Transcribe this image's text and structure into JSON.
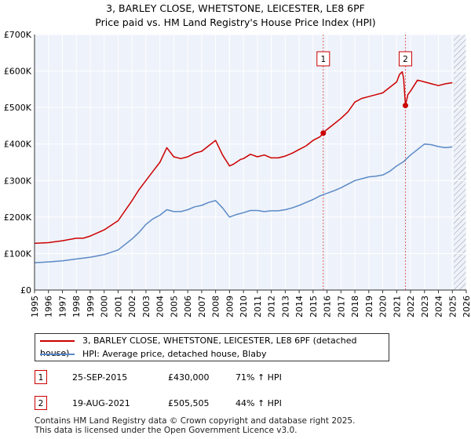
{
  "title_line1": "3, BARLEY CLOSE, WHETSTONE, LEICESTER, LE8 6PF",
  "title_line2": "Price paid vs. HM Land Registry's House Price Index (HPI)",
  "legend": [
    {
      "label": "3, BARLEY CLOSE, WHETSTONE, LEICESTER, LE8 6PF (detached house)",
      "color": "#cc0000"
    },
    {
      "label": "HPI: Average price, detached house, Blaby",
      "color": "#5b8ac6"
    }
  ],
  "transactions": [
    {
      "num": "1",
      "date": "25-SEP-2015",
      "price": "£430,000",
      "hpi": "71% ↑ HPI"
    },
    {
      "num": "2",
      "date": "19-AUG-2021",
      "price": "£505,505",
      "hpi": "44% ↑ HPI"
    }
  ],
  "footer_line1": "Contains HM Land Registry data © Crown copyright and database right 2025.",
  "footer_line2": "This data is licensed under the Open Government Licence v3.0.",
  "chart_data": {
    "type": "line",
    "xlim": [
      1995,
      2026
    ],
    "ylim": [
      0,
      700000
    ],
    "x_ticks": [
      "1995",
      "1996",
      "1997",
      "1998",
      "1999",
      "2000",
      "2001",
      "2002",
      "2003",
      "2004",
      "2005",
      "2006",
      "2007",
      "2008",
      "2009",
      "2010",
      "2011",
      "2012",
      "2013",
      "2014",
      "2015",
      "2016",
      "2017",
      "2018",
      "2019",
      "2020",
      "2021",
      "2022",
      "2023",
      "2024",
      "2025",
      "2026"
    ],
    "y_ticks": [
      {
        "value": 0,
        "label": "£0"
      },
      {
        "value": 100000,
        "label": "£100K"
      },
      {
        "value": 200000,
        "label": "£200K"
      },
      {
        "value": 300000,
        "label": "£300K"
      },
      {
        "value": 400000,
        "label": "£400K"
      },
      {
        "value": 500000,
        "label": "£500K"
      },
      {
        "value": 600000,
        "label": "£600K"
      },
      {
        "value": 700000,
        "label": "£700K"
      }
    ],
    "grid": true,
    "background": "#eef2fa",
    "future_hatch_from": 2025.1,
    "series": [
      {
        "name": "3, BARLEY CLOSE, WHETSTONE, LEICESTER, LE8 6PF (detached house)",
        "color": "#cc0000",
        "x": [
          1995.0,
          1996.0,
          1997.0,
          1998.0,
          1998.5,
          1999.0,
          2000.0,
          2001.0,
          2002.0,
          2002.5,
          2003.0,
          2003.5,
          2004.0,
          2004.5,
          2005.0,
          2005.5,
          2006.0,
          2006.5,
          2007.0,
          2007.5,
          2008.0,
          2008.5,
          2009.0,
          2009.3,
          2009.8,
          2010.0,
          2010.5,
          2011.0,
          2011.5,
          2012.0,
          2012.5,
          2013.0,
          2013.5,
          2014.0,
          2014.5,
          2015.0,
          2015.5,
          2015.73,
          2016.0,
          2016.5,
          2017.0,
          2017.5,
          2018.0,
          2018.5,
          2019.0,
          2019.5,
          2020.0,
          2020.5,
          2021.0,
          2021.2,
          2021.4,
          2021.5,
          2021.63,
          2021.8,
          2022.0,
          2022.5,
          2023.0,
          2023.5,
          2024.0,
          2024.5,
          2025.0
        ],
        "y": [
          128000,
          130000,
          135000,
          142000,
          142000,
          148000,
          165000,
          190000,
          245000,
          275000,
          300000,
          325000,
          350000,
          390000,
          365000,
          360000,
          365000,
          375000,
          380000,
          395000,
          410000,
          370000,
          340000,
          345000,
          358000,
          360000,
          372000,
          365000,
          370000,
          362000,
          362000,
          367000,
          375000,
          385000,
          395000,
          410000,
          420000,
          430000,
          440000,
          455000,
          470000,
          488000,
          515000,
          525000,
          530000,
          535000,
          540000,
          555000,
          570000,
          590000,
          598000,
          580000,
          505505,
          535000,
          545000,
          575000,
          570000,
          565000,
          560000,
          565000,
          568000
        ]
      },
      {
        "name": "HPI: Average price, detached house, Blaby",
        "color": "#5b8ac6",
        "x": [
          1995.0,
          1996.0,
          1997.0,
          1998.0,
          1999.0,
          2000.0,
          2001.0,
          2002.0,
          2002.5,
          2003.0,
          2003.5,
          2004.0,
          2004.5,
          2005.0,
          2005.5,
          2006.0,
          2006.5,
          2007.0,
          2007.5,
          2008.0,
          2008.5,
          2009.0,
          2009.5,
          2010.0,
          2010.5,
          2011.0,
          2011.5,
          2012.0,
          2012.5,
          2013.0,
          2013.5,
          2014.0,
          2014.5,
          2015.0,
          2015.5,
          2016.0,
          2016.5,
          2017.0,
          2017.5,
          2018.0,
          2018.5,
          2019.0,
          2019.5,
          2020.0,
          2020.5,
          2021.0,
          2021.5,
          2022.0,
          2022.5,
          2023.0,
          2023.5,
          2024.0,
          2024.5,
          2025.0
        ],
        "y": [
          75000,
          77000,
          80000,
          85000,
          90000,
          97000,
          110000,
          140000,
          158000,
          180000,
          195000,
          205000,
          220000,
          215000,
          215000,
          220000,
          228000,
          232000,
          240000,
          245000,
          225000,
          200000,
          207000,
          212000,
          218000,
          218000,
          215000,
          217000,
          217000,
          220000,
          225000,
          232000,
          240000,
          248000,
          258000,
          265000,
          272000,
          280000,
          290000,
          300000,
          305000,
          310000,
          312000,
          315000,
          325000,
          340000,
          352000,
          370000,
          385000,
          400000,
          398000,
          393000,
          390000,
          392000
        ]
      }
    ],
    "markers": [
      {
        "label": "1",
        "x": 2015.73,
        "y": 430000
      },
      {
        "label": "2",
        "x": 2021.63,
        "y": 505505
      }
    ]
  }
}
